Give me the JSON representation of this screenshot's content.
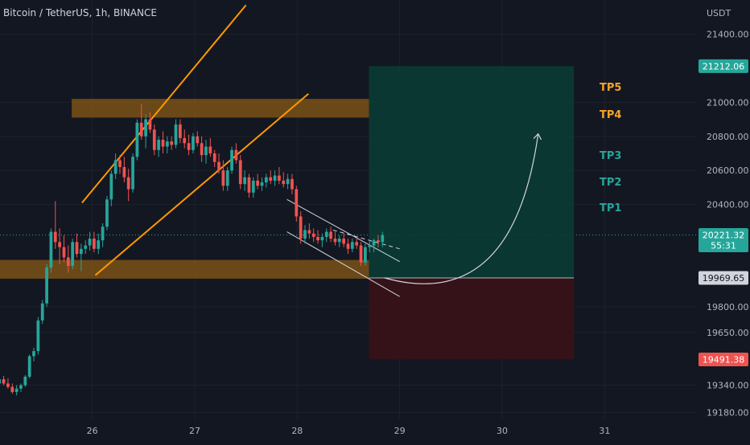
{
  "header": {
    "symbol_title": "Bitcoin / TetherUS, 1h, BINANCE"
  },
  "colors": {
    "background": "#131722",
    "up": "#26a69a",
    "down": "#ef5350",
    "orange": "#ff9800",
    "grid": "#1e222d",
    "axis_text": "#b2b5be",
    "tp_upper": "#f7a427",
    "tp_lower": "#26a69a",
    "target_zone": "#0b3b34",
    "stop_zone": "#3a1216",
    "zone_band": "#8a5a14"
  },
  "chart_data": {
    "type": "candlestick",
    "title": "Bitcoin / TetherUS, 1h, BINANCE",
    "y_axis_unit": "USDT",
    "y_ticks": [
      "21400.00",
      "21000.00",
      "20800.00",
      "20600.00",
      "20400.00",
      "19800.00",
      "19650.00",
      "19340.00",
      "19180.00"
    ],
    "x_ticks": [
      "26",
      "27",
      "28",
      "29",
      "30",
      "31"
    ],
    "x_range_days": [
      25.1,
      31.9
    ],
    "ylim": [
      19140,
      21600
    ],
    "price_labels": [
      {
        "id": "target",
        "text": "21212.06",
        "value": 21212.06,
        "color": "#26a69a"
      },
      {
        "id": "current",
        "text": "20221.32",
        "subtext": "55:31",
        "value": 20221.32,
        "color": "#26a69a"
      },
      {
        "id": "entry",
        "text": "19969.65",
        "value": 19969.65,
        "color": "#b2b5be"
      },
      {
        "id": "stop",
        "text": "19491.38",
        "value": 19491.38,
        "color": "#ef5350"
      }
    ],
    "take_profits": [
      {
        "label": "TP5",
        "value": 21090,
        "tone": "upper"
      },
      {
        "label": "TP4",
        "value": 20930,
        "tone": "upper"
      },
      {
        "label": "TP3",
        "value": 20690,
        "tone": "lower"
      },
      {
        "label": "TP2",
        "value": 20535,
        "tone": "lower"
      },
      {
        "label": "TP1",
        "value": 20385,
        "tone": "lower"
      }
    ],
    "zones": [
      {
        "name": "resistance",
        "x": [
          25.8,
          28.7
        ],
        "y": [
          20910,
          21020
        ]
      },
      {
        "name": "support",
        "x": [
          25.0,
          28.7
        ],
        "y": [
          19965,
          20075
        ]
      },
      {
        "name": "target",
        "x": [
          28.7,
          30.7
        ],
        "y": [
          19969.65,
          21212.06
        ]
      },
      {
        "name": "stop",
        "x": [
          28.7,
          30.7
        ],
        "y": [
          19491.38,
          19969.65
        ]
      }
    ],
    "lines": [
      {
        "name": "channel-top",
        "color": "#ff9800",
        "points": [
          [
            25.9,
            20410
          ],
          [
            27.5,
            21570
          ]
        ]
      },
      {
        "name": "channel-bottom",
        "color": "#ff9800",
        "points": [
          [
            26.03,
            19985
          ],
          [
            28.11,
            21050
          ]
        ]
      },
      {
        "name": "flag-top",
        "color": "#d1d4dc",
        "points": [
          [
            27.9,
            20430
          ],
          [
            29.0,
            20065
          ]
        ]
      },
      {
        "name": "flag-bottom",
        "color": "#d1d4dc",
        "points": [
          [
            27.9,
            20240
          ],
          [
            29.0,
            19860
          ]
        ]
      },
      {
        "name": "flag-mid",
        "color": "#d1d4dc",
        "dashed": true,
        "points": [
          [
            28.35,
            20250
          ],
          [
            29.0,
            20140
          ]
        ]
      }
    ],
    "projection_arc": {
      "from": [
        28.85,
        19970
      ],
      "control": [
        30.1,
        19760
      ],
      "to": [
        30.35,
        20810
      ]
    },
    "candles_first_x": 24.8,
    "candle_step_days": 0.042,
    "candles": [
      [
        19370,
        19400,
        19340,
        19360
      ],
      [
        19360,
        19390,
        19320,
        19340
      ],
      [
        19340,
        19360,
        19300,
        19330
      ],
      [
        19330,
        19380,
        19310,
        19370
      ],
      [
        19370,
        19410,
        19350,
        19385
      ],
      [
        19385,
        19400,
        19340,
        19355
      ],
      [
        19355,
        19380,
        19330,
        19350
      ],
      [
        19350,
        19390,
        19330,
        19375
      ],
      [
        19375,
        19395,
        19340,
        19350
      ],
      [
        19350,
        19380,
        19320,
        19330
      ],
      [
        19330,
        19350,
        19290,
        19300
      ],
      [
        19300,
        19340,
        19280,
        19320
      ],
      [
        19320,
        19350,
        19300,
        19340
      ],
      [
        19340,
        19400,
        19330,
        19390
      ],
      [
        19390,
        19520,
        19380,
        19510
      ],
      [
        19510,
        19560,
        19480,
        19540
      ],
      [
        19540,
        19740,
        19520,
        19720
      ],
      [
        19720,
        19840,
        19700,
        19820
      ],
      [
        19820,
        20050,
        19800,
        20030
      ],
      [
        20030,
        20260,
        20000,
        20240
      ],
      [
        20240,
        20420,
        20140,
        20180
      ],
      [
        20180,
        20260,
        20050,
        20150
      ],
      [
        20150,
        20220,
        20060,
        20090
      ],
      [
        20090,
        20160,
        20000,
        20040
      ],
      [
        20040,
        20200,
        20020,
        20180
      ],
      [
        20180,
        20230,
        20090,
        20110
      ],
      [
        20110,
        20170,
        20010,
        20140
      ],
      [
        20140,
        20190,
        20110,
        20160
      ],
      [
        20160,
        20240,
        20130,
        20200
      ],
      [
        20200,
        20240,
        20120,
        20140
      ],
      [
        20140,
        20230,
        20110,
        20190
      ],
      [
        20190,
        20290,
        20150,
        20270
      ],
      [
        20270,
        20450,
        20250,
        20430
      ],
      [
        20430,
        20600,
        20390,
        20580
      ],
      [
        20580,
        20700,
        20550,
        20660
      ],
      [
        20660,
        20690,
        20580,
        20620
      ],
      [
        20620,
        20680,
        20530,
        20560
      ],
      [
        20560,
        20610,
        20420,
        20490
      ],
      [
        20490,
        20700,
        20470,
        20680
      ],
      [
        20680,
        20900,
        20660,
        20880
      ],
      [
        20880,
        20990,
        20780,
        20800
      ],
      [
        20800,
        20930,
        20730,
        20900
      ],
      [
        20900,
        20940,
        20820,
        20840
      ],
      [
        20840,
        20870,
        20690,
        20720
      ],
      [
        20720,
        20800,
        20680,
        20780
      ],
      [
        20780,
        20830,
        20700,
        20740
      ],
      [
        20740,
        20800,
        20700,
        20770
      ],
      [
        20770,
        20800,
        20720,
        20750
      ],
      [
        20750,
        20900,
        20730,
        20870
      ],
      [
        20870,
        20900,
        20760,
        20790
      ],
      [
        20790,
        20840,
        20730,
        20760
      ],
      [
        20760,
        20810,
        20690,
        20720
      ],
      [
        20720,
        20820,
        20700,
        20800
      ],
      [
        20800,
        20830,
        20740,
        20760
      ],
      [
        20760,
        20800,
        20650,
        20690
      ],
      [
        20690,
        20780,
        20640,
        20740
      ],
      [
        20740,
        20790,
        20680,
        20700
      ],
      [
        20700,
        20720,
        20620,
        20650
      ],
      [
        20650,
        20700,
        20580,
        20600
      ],
      [
        20600,
        20660,
        20480,
        20510
      ],
      [
        20510,
        20620,
        20480,
        20600
      ],
      [
        20600,
        20740,
        20580,
        20720
      ],
      [
        20720,
        20760,
        20640,
        20660
      ],
      [
        20660,
        20690,
        20490,
        20520
      ],
      [
        20520,
        20600,
        20480,
        20560
      ],
      [
        20560,
        20580,
        20440,
        20470
      ],
      [
        20470,
        20560,
        20440,
        20540
      ],
      [
        20540,
        20580,
        20490,
        20510
      ],
      [
        20510,
        20560,
        20480,
        20530
      ],
      [
        20530,
        20580,
        20500,
        20560
      ],
      [
        20560,
        20600,
        20520,
        20540
      ],
      [
        20540,
        20600,
        20510,
        20570
      ],
      [
        20570,
        20620,
        20520,
        20540
      ],
      [
        20540,
        20590,
        20500,
        20520
      ],
      [
        20520,
        20580,
        20490,
        20550
      ],
      [
        20550,
        20580,
        20460,
        20490
      ],
      [
        20490,
        20510,
        20300,
        20330
      ],
      [
        20330,
        20360,
        20170,
        20200
      ],
      [
        20200,
        20280,
        20170,
        20250
      ],
      [
        20250,
        20290,
        20200,
        20230
      ],
      [
        20230,
        20260,
        20180,
        20210
      ],
      [
        20210,
        20250,
        20170,
        20190
      ],
      [
        20190,
        20230,
        20150,
        20210
      ],
      [
        20210,
        20260,
        20180,
        20240
      ],
      [
        20240,
        20270,
        20180,
        20200
      ],
      [
        20200,
        20240,
        20160,
        20180
      ],
      [
        20180,
        20220,
        20150,
        20200
      ],
      [
        20200,
        20230,
        20150,
        20170
      ],
      [
        20170,
        20200,
        20110,
        20140
      ],
      [
        20140,
        20200,
        20120,
        20180
      ],
      [
        20180,
        20210,
        20140,
        20160
      ],
      [
        20160,
        20180,
        20040,
        20060
      ],
      [
        20060,
        20170,
        20040,
        20150
      ],
      [
        20150,
        20190,
        20120,
        20160
      ],
      [
        20160,
        20200,
        20120,
        20190
      ],
      [
        20190,
        20220,
        20150,
        20180
      ],
      [
        20180,
        20240,
        20150,
        20221.32
      ]
    ]
  }
}
